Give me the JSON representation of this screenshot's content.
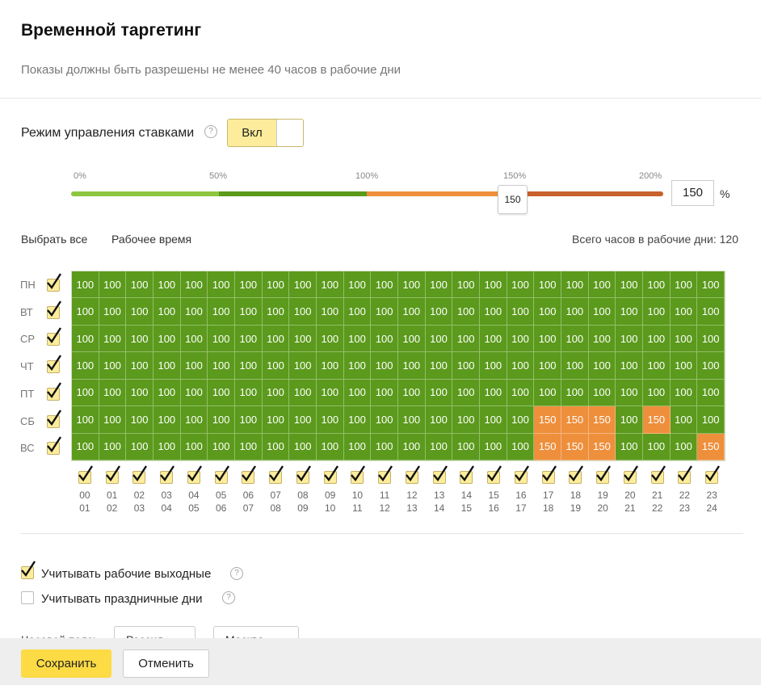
{
  "header": {
    "title": "Временной таргетинг",
    "subtitle": "Показы должны быть разрешены не менее 40 часов в рабочие дни"
  },
  "bid_mode": {
    "label": "Режим управления ставками",
    "toggle_label": "Вкл",
    "toggle_on": true
  },
  "slider": {
    "ticks": [
      "0%",
      "50%",
      "100%",
      "150%",
      "200%"
    ],
    "value": 150,
    "handle_label": "150",
    "input_value": "150",
    "unit": "%",
    "colors": {
      "light_green": "#8dc63f",
      "green": "#5b9a1c",
      "orange": "#ee8f3c",
      "dark_orange": "#c8612c"
    }
  },
  "controls": {
    "select_all": "Выбрать все",
    "work_time": "Рабочее время",
    "total_hours": "Всего часов в рабочие дни: 120"
  },
  "days": [
    "ПН",
    "ВТ",
    "СР",
    "ЧТ",
    "ПТ",
    "СБ",
    "ВС"
  ],
  "hours_top": [
    "00",
    "01",
    "02",
    "03",
    "04",
    "05",
    "06",
    "07",
    "08",
    "09",
    "10",
    "11",
    "12",
    "13",
    "14",
    "15",
    "16",
    "17",
    "18",
    "19",
    "20",
    "21",
    "22",
    "23"
  ],
  "hours_bottom": [
    "01",
    "02",
    "03",
    "04",
    "05",
    "06",
    "07",
    "08",
    "09",
    "10",
    "11",
    "12",
    "13",
    "14",
    "15",
    "16",
    "17",
    "18",
    "19",
    "20",
    "21",
    "22",
    "23",
    "24"
  ],
  "grid": [
    [
      100,
      100,
      100,
      100,
      100,
      100,
      100,
      100,
      100,
      100,
      100,
      100,
      100,
      100,
      100,
      100,
      100,
      100,
      100,
      100,
      100,
      100,
      100,
      100
    ],
    [
      100,
      100,
      100,
      100,
      100,
      100,
      100,
      100,
      100,
      100,
      100,
      100,
      100,
      100,
      100,
      100,
      100,
      100,
      100,
      100,
      100,
      100,
      100,
      100
    ],
    [
      100,
      100,
      100,
      100,
      100,
      100,
      100,
      100,
      100,
      100,
      100,
      100,
      100,
      100,
      100,
      100,
      100,
      100,
      100,
      100,
      100,
      100,
      100,
      100
    ],
    [
      100,
      100,
      100,
      100,
      100,
      100,
      100,
      100,
      100,
      100,
      100,
      100,
      100,
      100,
      100,
      100,
      100,
      100,
      100,
      100,
      100,
      100,
      100,
      100
    ],
    [
      100,
      100,
      100,
      100,
      100,
      100,
      100,
      100,
      100,
      100,
      100,
      100,
      100,
      100,
      100,
      100,
      100,
      100,
      100,
      100,
      100,
      100,
      100,
      100
    ],
    [
      100,
      100,
      100,
      100,
      100,
      100,
      100,
      100,
      100,
      100,
      100,
      100,
      100,
      100,
      100,
      100,
      100,
      150,
      150,
      150,
      100,
      150,
      100,
      100
    ],
    [
      100,
      100,
      100,
      100,
      100,
      100,
      100,
      100,
      100,
      100,
      100,
      100,
      100,
      100,
      100,
      100,
      100,
      150,
      150,
      150,
      100,
      100,
      100,
      150
    ]
  ],
  "options": {
    "working_weekends": {
      "label": "Учитывать рабочие выходные",
      "checked": true
    },
    "holidays": {
      "label": "Учитывать праздничные дни",
      "checked": false
    }
  },
  "timezone": {
    "label": "Часовой пояс:",
    "country": "Россия",
    "city": "Москва"
  },
  "footer": {
    "save": "Сохранить",
    "cancel": "Отменить"
  }
}
